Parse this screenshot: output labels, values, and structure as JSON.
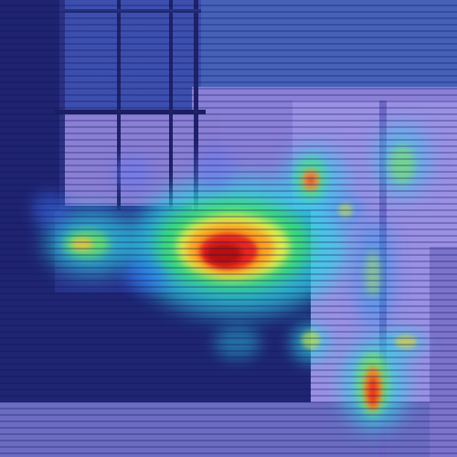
{
  "image": {
    "kind": "attention heatmap overlay on photograph",
    "colormap": [
      "#1e2a8f",
      "#2f6bff",
      "#28d8e8",
      "#3ae06a",
      "#f3f04a",
      "#ff9a1e",
      "#e8201a",
      "#b01010"
    ],
    "colors": {
      "base_tint": "#2a2f9a",
      "wall_lavender": "#9a8fe0",
      "dark_bench": "#1d1f66",
      "hot_core": "#c0180f"
    }
  }
}
